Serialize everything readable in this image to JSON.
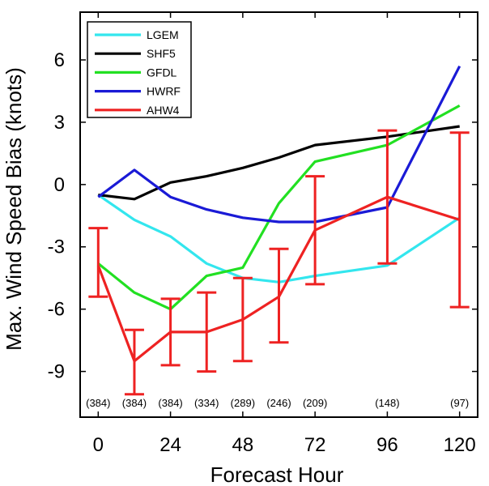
{
  "chart_data": {
    "type": "line",
    "xlabel": "Forecast Hour",
    "ylabel": "Max. Wind Speed Bias (knots)",
    "xlim": [
      -6,
      126
    ],
    "ylim": [
      -11.2,
      8.3
    ],
    "xticks": [
      0,
      24,
      48,
      72,
      96,
      120
    ],
    "yticks": [
      -9,
      -6,
      -3,
      0,
      3,
      6
    ],
    "legend_position": "top-left",
    "sample_counts": [
      {
        "x": 0,
        "label": "(384)"
      },
      {
        "x": 12,
        "label": "(384)"
      },
      {
        "x": 24,
        "label": "(384)"
      },
      {
        "x": 36,
        "label": "(334)"
      },
      {
        "x": 48,
        "label": "(289)"
      },
      {
        "x": 60,
        "label": "(246)"
      },
      {
        "x": 72,
        "label": "(209)"
      },
      {
        "x": 96,
        "label": "(148)"
      },
      {
        "x": 120,
        "label": "(97)"
      }
    ],
    "series": [
      {
        "name": "LGEM",
        "color": "#33e6ee",
        "x": [
          0,
          12,
          24,
          36,
          48,
          60,
          72,
          96,
          120
        ],
        "y": [
          -0.5,
          -1.7,
          -2.5,
          -3.8,
          -4.5,
          -4.7,
          -4.4,
          -3.9,
          -1.6
        ]
      },
      {
        "name": "SHF5",
        "color": "#000000",
        "x": [
          0,
          12,
          24,
          36,
          48,
          60,
          72,
          96,
          120
        ],
        "y": [
          -0.5,
          -0.7,
          0.1,
          0.4,
          0.8,
          1.3,
          1.9,
          2.3,
          2.8
        ]
      },
      {
        "name": "GFDL",
        "color": "#22e022",
        "x": [
          0,
          12,
          24,
          36,
          48,
          60,
          72,
          96,
          120
        ],
        "y": [
          -3.8,
          -5.2,
          -6.0,
          -4.4,
          -4.0,
          -0.9,
          1.1,
          1.9,
          3.8
        ]
      },
      {
        "name": "HWRF",
        "color": "#1a1ad6",
        "x": [
          0,
          12,
          24,
          36,
          48,
          60,
          72,
          96,
          120
        ],
        "y": [
          -0.6,
          0.7,
          -0.6,
          -1.2,
          -1.6,
          -1.8,
          -1.8,
          -1.1,
          5.7
        ]
      },
      {
        "name": "AHW4",
        "color": "#ee2222",
        "x": [
          0,
          12,
          24,
          36,
          48,
          60,
          72,
          96,
          120
        ],
        "y": [
          -3.9,
          -8.5,
          -7.1,
          -7.1,
          -6.5,
          -5.4,
          -2.2,
          -0.6,
          -1.7
        ],
        "error_low": [
          -5.4,
          -10.1,
          -8.7,
          -9.0,
          -8.5,
          -7.6,
          -4.8,
          -3.8,
          -5.9
        ],
        "error_high": [
          -2.1,
          -7.0,
          -5.5,
          -5.2,
          -4.5,
          -3.1,
          0.4,
          2.6,
          2.5
        ]
      }
    ]
  }
}
